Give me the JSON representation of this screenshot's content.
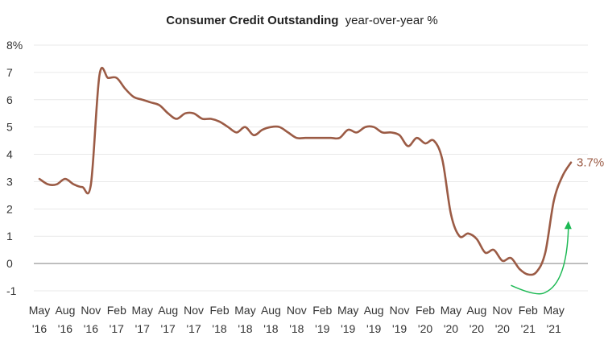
{
  "chart_data": {
    "type": "line",
    "title": "Consumer Credit Outstanding",
    "subtitle": "year-over-year %",
    "xlabel": "",
    "ylabel": "",
    "ylim": [
      -1,
      8
    ],
    "y_ticks": [
      "8%",
      "7",
      "6",
      "5",
      "4",
      "3",
      "2",
      "1",
      "0",
      "-1"
    ],
    "x_ticks": [
      {
        "month": "May",
        "year": "'16"
      },
      {
        "month": "Aug",
        "year": "'16"
      },
      {
        "month": "Nov",
        "year": "'16"
      },
      {
        "month": "Feb",
        "year": "'17"
      },
      {
        "month": "May",
        "year": "'17"
      },
      {
        "month": "Aug",
        "year": "'17"
      },
      {
        "month": "Nov",
        "year": "'17"
      },
      {
        "month": "Feb",
        "year": "'18"
      },
      {
        "month": "May",
        "year": "'18"
      },
      {
        "month": "Aug",
        "year": "'18"
      },
      {
        "month": "Nov",
        "year": "'18"
      },
      {
        "month": "Feb",
        "year": "'19"
      },
      {
        "month": "May",
        "year": "'19"
      },
      {
        "month": "Aug",
        "year": "'19"
      },
      {
        "month": "Nov",
        "year": "'19"
      },
      {
        "month": "Feb",
        "year": "'20"
      },
      {
        "month": "May",
        "year": "'20"
      },
      {
        "month": "Aug",
        "year": "'20"
      },
      {
        "month": "Nov",
        "year": "'20"
      },
      {
        "month": "Feb",
        "year": "'21"
      },
      {
        "month": "May",
        "year": "'21"
      }
    ],
    "grid": true,
    "colors": {
      "line": "#9b5b45",
      "arrow": "#1db954",
      "grid": "#e9e9e9",
      "zero": "#9a9a9a"
    },
    "end_label": "3.7%",
    "series": [
      {
        "values": [
          3.1,
          2.9,
          2.9,
          3.1,
          2.9,
          2.8,
          2.9,
          6.9,
          6.8,
          6.8,
          6.4,
          6.1,
          6.0,
          5.9,
          5.8,
          5.5,
          5.3,
          5.5,
          5.5,
          5.3,
          5.3,
          5.2,
          5.0,
          4.8,
          5.0,
          4.7,
          4.9,
          5.0,
          5.0,
          4.8,
          4.6,
          4.6,
          4.6,
          4.6,
          4.6,
          4.6,
          4.9,
          4.8,
          5.0,
          5.0,
          4.8,
          4.8,
          4.7,
          4.3,
          4.6,
          4.4,
          4.5,
          3.8,
          1.8,
          1.0,
          1.1,
          0.9,
          0.4,
          0.5,
          0.1,
          0.2,
          -0.2,
          -0.4,
          -0.3,
          0.4,
          2.3,
          3.2,
          3.7
        ]
      }
    ]
  }
}
